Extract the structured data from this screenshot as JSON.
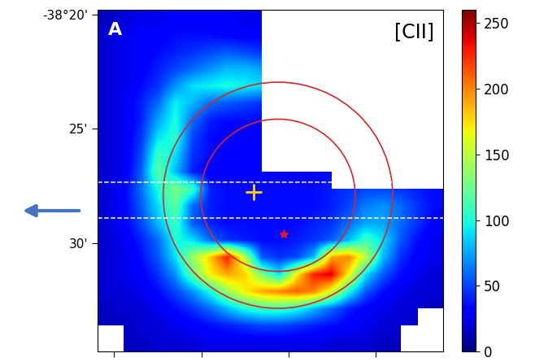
{
  "chart_data": {
    "type": "heatmap",
    "annotations": [
      "A",
      "[CII]"
    ],
    "xlim": [
      0,
      14.9
    ],
    "xticks": [
      0.7,
      4.5,
      8.25,
      12.0
    ],
    "ylim": [
      34.74,
      19.79
    ],
    "yticks": [
      {
        "value": 20,
        "label": "-38°20'"
      },
      {
        "value": 25,
        "label": "25'"
      },
      {
        "value": 30,
        "label": "30'"
      }
    ],
    "tick_labels": "y",
    "colorbar_lim": [
      0,
      260
    ],
    "colorbar_ticks": [
      0,
      50,
      100,
      150,
      200,
      250
    ],
    "cells": [
      [
        15,
        20,
        25,
        25,
        30,
        30,
        30,
        30,
        25,
        25,
        null,
        null,
        null,
        null,
        null,
        null,
        null,
        null,
        null,
        null
      ],
      [
        20,
        25,
        30,
        30,
        35,
        35,
        35,
        30,
        30,
        30,
        null,
        null,
        null,
        null,
        null,
        null,
        null,
        null,
        null,
        null
      ],
      [
        20,
        25,
        30,
        35,
        40,
        45,
        50,
        55,
        50,
        45,
        null,
        null,
        null,
        null,
        null,
        null,
        null,
        null,
        null,
        null
      ],
      [
        20,
        25,
        30,
        40,
        50,
        60,
        70,
        80,
        80,
        75,
        null,
        null,
        null,
        null,
        null,
        null,
        null,
        null,
        null,
        null
      ],
      [
        20,
        25,
        35,
        45,
        70,
        90,
        95,
        100,
        95,
        90,
        null,
        null,
        null,
        null,
        null,
        null,
        null,
        null,
        null,
        null
      ],
      [
        20,
        25,
        40,
        60,
        95,
        80,
        60,
        55,
        50,
        45,
        null,
        null,
        null,
        null,
        null,
        null,
        null,
        null,
        null,
        null
      ],
      [
        20,
        25,
        40,
        75,
        100,
        60,
        40,
        35,
        35,
        35,
        null,
        null,
        null,
        null,
        null,
        null,
        null,
        null,
        null,
        null
      ],
      [
        20,
        25,
        45,
        90,
        105,
        50,
        35,
        30,
        30,
        30,
        null,
        null,
        null,
        null,
        null,
        null,
        null,
        null,
        null,
        null
      ],
      [
        20,
        25,
        50,
        110,
        90,
        45,
        35,
        30,
        30,
        30,
        null,
        null,
        null,
        null,
        null,
        null,
        null,
        null,
        null,
        null
      ],
      [
        20,
        25,
        55,
        120,
        80,
        40,
        30,
        30,
        30,
        30,
        30,
        30,
        30,
        35,
        null,
        null,
        null,
        null,
        null,
        null
      ],
      [
        20,
        30,
        60,
        100,
        130,
        110,
        40,
        35,
        35,
        35,
        35,
        35,
        35,
        40,
        45,
        50,
        50,
        45,
        40,
        35
      ],
      [
        20,
        30,
        55,
        90,
        120,
        60,
        40,
        35,
        35,
        35,
        35,
        35,
        35,
        40,
        50,
        65,
        70,
        60,
        45,
        35
      ],
      [
        20,
        30,
        50,
        80,
        110,
        55,
        40,
        35,
        35,
        35,
        35,
        35,
        40,
        45,
        60,
        75,
        75,
        60,
        45,
        30
      ],
      [
        20,
        25,
        40,
        60,
        100,
        90,
        60,
        45,
        40,
        35,
        35,
        40,
        45,
        55,
        80,
        110,
        90,
        55,
        35,
        25
      ],
      [
        20,
        25,
        35,
        55,
        90,
        140,
        180,
        230,
        150,
        55,
        45,
        50,
        80,
        190,
        200,
        150,
        80,
        45,
        30,
        25
      ],
      [
        20,
        25,
        30,
        45,
        70,
        120,
        170,
        190,
        180,
        130,
        90,
        170,
        230,
        240,
        170,
        90,
        55,
        35,
        25,
        20
      ],
      [
        20,
        20,
        25,
        35,
        50,
        70,
        100,
        140,
        170,
        190,
        200,
        210,
        200,
        160,
        100,
        55,
        35,
        25,
        20,
        20
      ],
      [
        15,
        20,
        20,
        25,
        35,
        45,
        60,
        80,
        100,
        110,
        110,
        100,
        80,
        60,
        40,
        30,
        25,
        20,
        20,
        15
      ],
      [
        15,
        15,
        20,
        20,
        25,
        30,
        35,
        40,
        45,
        50,
        50,
        45,
        40,
        35,
        30,
        25,
        20,
        20,
        15,
        null
      ],
      [
        null,
        15,
        15,
        20,
        20,
        20,
        25,
        25,
        25,
        25,
        25,
        25,
        25,
        20,
        20,
        20,
        15,
        15,
        null,
        null
      ]
    ]
  }
}
